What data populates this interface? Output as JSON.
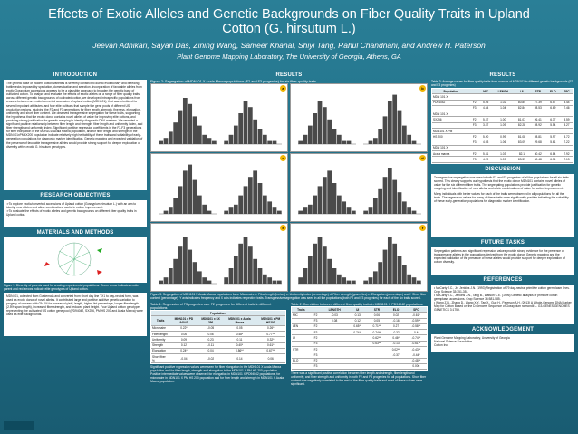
{
  "header": {
    "title_line1": "Effects of Exotic Alleles and Genetic Backgrounds on Fiber Quality Traits in Upland",
    "title_line2": "Cotton (G. hirsutum L.)",
    "authors": "Jeevan Adhikari, Sayan Das, Zining Wang, Sameer Khanal, Shiyi Tang, Rahul Chandnani, and Andrew H. Paterson",
    "affiliation": "Plant Genome Mapping Laboratory, The University of Georgia, Athens, GA"
  },
  "intro": {
    "title": "INTRODUCTION",
    "text": "The genetic base of modern cotton varieties is severely constricted due to evolutionary and breeding bottlenecks imposed by speciation, domestication and selection. Incorporation of favorable alleles from exotic Gossypium accessions appears to be a plausible approach to broaden the genetic base of cultivated cotton. To analyze and evaluate the effects of exotic alleles on a range of fiber quality traits across different genetic backgrounds of cultivated cotton, we developed introspecific populations from crosses between an exotic/converted accession of upland cotton (MDN101), that was prioritized for several important attributes, and four elite cultivars that sample the gene pools of different US production regions, studying the F2 and F3 generations for fiber length, strength, fineness, elongation, uniformity and short fiber content. We observed transgressive segregation for these traits, supporting the hypothesis that the exotic donor contains novel alleles of value for improving elite cottons, and providing strong justification for genetic mapping to identify diagnostic DNA markers. We revealed a significant positive relationship between fiber length and strength, fiber length and uniformity index, and fiber strength and uniformity index. Significant positive regression coefficients in the F2-F3 generations for fiber elongation in the MDN101xAcala Maxxa population, and for fiber length and strength in the MDN101xPM4X200 population indicate relatively high heritability of these traits and suitability of early-generation populations for diagnostic marker identification. Genetic mapping and expected validation of the presence of favorable transgressive alleles would provide strong support for deeper exploration of diversity within exotic G. hirsutum genotypes."
  },
  "objectives": {
    "title": "RESEARCH OBJECTIVES",
    "item1": "➢To explore exotic/converted accessions of Upland cotton (Gossypium hirsutum L.) with an aim to identify new alleles and allele combinations useful in cotton improvement.",
    "item2": "➢To evaluate the effects of exotic alleles and genetic backgrounds on different fiber quality traits in Upland cotton."
  },
  "methods": {
    "title": "MATERIALS AND METHODS",
    "fig_caption": "Figure 1. Diversity of parents used for creating experimental populations. Green arrow indicates exotic parent and red arrows indicate elite genotypes of Upland cotton.",
    "text": "MDN101, collected from Guatemala and converted from short day line TX1 to day-neutral form, was used as exotic donor of novel alleles. It contributed large and positive additive genetic variation to progeny of crosses with GM-04 for increased yield, length, higher lint percentage, longer fiber length (2.5% span length), increased fiber strength, and reduced plant height. Four Upland cotton genotypes representing the cultivated US cotton gene pool (PD94042, SX256, PM HS 200 and Acala Maxxa) were used as elite backgrounds."
  },
  "results_mid": {
    "title": "RESULTS",
    "fig2_caption": "Figure 2: Segregation of MDN101 X Acala Maxxa populations (F2 and F3 progenies) for six fiber quality traits",
    "fig3_caption": "Figure 3: Segregation of MDN101 X Acala Maxxa populations for a. Micronaire b. Fiber length (inches) c. Uniformity index (percentage) d. Fiber strength (grams/tex) e. Elongation (percentage) and f. Short fiber content (percentage). Y axis indicates frequency and X axis indicates respective traits. Transgressive segregation was seen in all the populations (both F2 and F3 progenies) for each of the six traits scored.",
    "panel_labels": [
      "a",
      "b",
      "c",
      "d",
      "e",
      "f"
    ],
    "table1_title": "Table 1: Regression of F3 progenies over F2 progenies for different traits in different populations",
    "table1_header": [
      "Traits",
      "MDN101 x PD 94042",
      "MDN101 x SX 256",
      "MDN101 x Acala Maxxa",
      "MDN101 x PM HS200"
    ],
    "table1_subheader": "Populations",
    "table1_rows": [
      [
        "Micronaire",
        "0.22*",
        "-0.05",
        "0.05",
        "0.26*"
      ],
      [
        "Fiber length",
        "0.06",
        "0.06",
        "0.48*",
        "0.77**"
      ],
      [
        "Uniformity",
        "0.09",
        "0.23",
        "0.11",
        "0.32*"
      ],
      [
        "Strength",
        "0.12",
        "-0.11",
        "0.40*",
        "0.61*"
      ],
      [
        "Elongation",
        "0.24*",
        "0.04",
        "0.86**",
        "0.67**"
      ],
      [
        "Short fiber %",
        "-0.04",
        "-0.02",
        "0.14",
        "0.06"
      ]
    ],
    "table1_text": "Significant positive regression values were seen for fiber elongation in the MDN101 X Acala Maxxa population and for fiber length, strength and elongation in the MDN101 X PM HS 200 population. Positive intermediate values were observed for elongation in MDN101 X PD94042 populations, for micronaire in MDN101 X PM HS 200 population and for fiber length and strength in MDN101 X Acala Maxxa population.",
    "table2_title": "Table 2: Correlation between different fiber quality traits in MDN101 X PD94042 populations",
    "table2_header": [
      "Traits",
      "",
      "LENGTH",
      "UI",
      "STR",
      "ELO",
      "SFC"
    ],
    "table2_rows": [
      [
        "MIC",
        "F2",
        "-0.03",
        "0.13",
        "0.06",
        "0.02",
        "-0.61*"
      ],
      [
        "",
        "F3",
        "0.08",
        "0.12",
        "0.05",
        "-0.16",
        "-0.59**"
      ],
      [
        "LEN",
        "F2",
        "",
        "0.65**",
        "0.71**",
        "0.27",
        "-0.58**"
      ],
      [
        "",
        "F3",
        "",
        "0.74**",
        "0.74**",
        "-0.32",
        "-0.4*"
      ],
      [
        "UI",
        "F2",
        "",
        "",
        "0.62**",
        "0.46*",
        "-0.74**"
      ],
      [
        "",
        "F3",
        "",
        "",
        "0.63**",
        "-0.13",
        "-0.61**"
      ],
      [
        "STR",
        "F2",
        "",
        "",
        "",
        "0.02**",
        "-0.43**"
      ],
      [
        "",
        "F3",
        "",
        "",
        "",
        "-0.37",
        "-0.44*"
      ],
      [
        "ELO",
        "F2",
        "",
        "",
        "",
        "",
        "-0.48**"
      ],
      [
        "",
        "F3",
        "",
        "",
        "",
        "",
        "0.006"
      ]
    ],
    "table2_text": "There was a significant positive correlation between fiber length and strength, fiber length and uniformity, and fiber strength and uniformity in both F2 and F3 progenies for all populations. Short fiber content was negatively correlated to the rest of the fiber quality traits and most of these values were significant."
  },
  "results_right": {
    "title": "RESULTS",
    "table3_title": "Table 3: Average values for fiber quality traits from crosses of MDN101 in different genetic backgrounds (F2 and F3 progenies)",
    "table3_header": [
      "Population",
      "",
      "MIC",
      "LENGH",
      "UI",
      "STR",
      "ELO",
      "SFC"
    ],
    "table3_rows": [
      [
        "MDN 101 X",
        "",
        "",
        "",
        "",
        "",
        "",
        ""
      ],
      [
        "PD94042",
        "F2",
        "5.25",
        "1.02",
        "80.84",
        "27.39",
        "6.57",
        "8.44"
      ],
      [
        "",
        "F3",
        "4.54",
        "1.04",
        "82.84",
        "28.53",
        "6.69",
        "7.46"
      ],
      [
        "MDN 101 X",
        "",
        "",
        "",
        "",
        "",
        "",
        ""
      ],
      [
        "SX256",
        "F2",
        "5.37",
        "1.00",
        "81.07",
        "26.41",
        "6.37",
        "8.59"
      ],
      [
        "",
        "F3",
        "3.87",
        "1.09",
        "82.28",
        "28.92",
        "5.54",
        "8.27"
      ],
      [
        "MDN101 X PM",
        "",
        "",
        "",
        "",
        "",
        "",
        ""
      ],
      [
        "HS 200",
        "F2",
        "5.20",
        "0.99",
        "81.08",
        "28.81",
        "5.97",
        "8.72"
      ],
      [
        "",
        "F3",
        "4.93",
        "1.06",
        "83.09",
        "29.68",
        "5.61",
        "7.22"
      ],
      [
        "MDN 101 X",
        "",
        "",
        "",
        "",
        "",
        "",
        ""
      ],
      [
        "Acala maxxa",
        "F2",
        "5.31",
        "1.03",
        "82.1",
        "30.42",
        "6.84",
        "7.92"
      ],
      [
        "",
        "F3",
        "4.29",
        "1.09",
        "83.39",
        "30.48",
        "6.31",
        "7.13"
      ]
    ]
  },
  "discussion": {
    "title": "DISCUSSION",
    "p1": "Transgressive segregation was seen in both F2 and F3 progenies of all the populations for all six traits scored. This clearly supports our hypothesis that the exotic donor MDN101 contains novel alleles of value for the six different fiber traits. The segregating populations provide justification for genetic mapping and identification of new alleles and allele combinations of value for cotton improvement.",
    "p2": "Many individuals with better values for each of the traits were observed in all populations for all the traits. The regression values for many of these traits were significantly positive indicating the suitability of these early-generation populations for diagnostic marker identification."
  },
  "future": {
    "title": "FUTURE TASKS",
    "text": "Segregation patterns and significant regression values provide strong evidence for the presence of transgressive alleles in the populations derived from the exotic donor. Genetic mapping and the expected validation of the presence of these alleles would provide support for deeper exploration of cotton diversity."
  },
  "references": {
    "title": "REFERENCES",
    "r1": "• McCarty J.C., Jr., Jenkins J.N. (1993) Registration of 79 day-neutral primitive cotton germplasm lines. Crop Science 33:351-351.",
    "r2": "• McCarty J.C., Jenkins J.N., Tang B., Watson C.E. (1996) Genetic analysis of primitive cotton germplasm accessions. Crop Science 36:581-585.",
    "r3": "• Wang Z.N., Zhang D., Wang X.Y., Tan X., Guo H., Paterson A.H. (2013) A Whole-Genome DNA Marker Map for Cotton Based on the D-Genome Sequence of Gossypium raimondii L. G3-GENES GENOMES GENETICS 3:1759."
  },
  "ack": {
    "title": "ACKNOWLEDGEMENT",
    "l1": "Plant Genome Mapping Laboratory, University of Georgia",
    "l2": "National Science Foundation",
    "l3": "Cotton Inc."
  },
  "colors": {
    "background": "#1f6d84",
    "panel": "#ffffff",
    "accent": "#f2b705",
    "heading_dark": "#0d3e50"
  }
}
